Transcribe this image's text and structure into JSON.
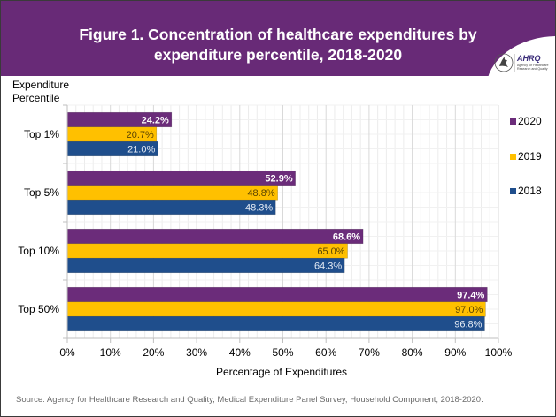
{
  "header": {
    "title_line1": "Figure 1. Concentration of healthcare expenditures by",
    "title_line2": "expenditure percentile, 2018-2020",
    "logo_text": "AHRQ",
    "logo_subtext_line1": "Agency for Healthcare",
    "logo_subtext_line2": "Research and Quality"
  },
  "source": "Source: Agency for Healthcare Research and Quality, Medical Expenditure Panel Survey, Household Component, 2018-2020.",
  "chart_data": {
    "type": "bar",
    "orientation": "horizontal",
    "title": "Figure 1. Concentration of healthcare expenditures by expenditure percentile, 2018-2020",
    "ylabel_line1": "Expenditure",
    "ylabel_line2": "Percentile",
    "xlabel": "Percentage of Expenditures",
    "categories": [
      "Top 1%",
      "Top 5%",
      "Top 10%",
      "Top 50%"
    ],
    "series": [
      {
        "name": "2020",
        "color": "#6b2c7a",
        "label_color": "#ffffff",
        "label_bold": true,
        "values": [
          24.2,
          52.9,
          68.6,
          97.4
        ],
        "labels": [
          "24.2%",
          "52.9%",
          "68.6%",
          "97.4%"
        ]
      },
      {
        "name": "2019",
        "color": "#ffc000",
        "label_color": "#5a4300",
        "label_bold": false,
        "values": [
          20.7,
          48.8,
          65.0,
          97.0
        ],
        "labels": [
          "20.7%",
          "48.8%",
          "65.0%",
          "97.0%"
        ]
      },
      {
        "name": "2018",
        "color": "#1f4e8c",
        "label_color": "#e6ecf5",
        "label_bold": false,
        "values": [
          21.0,
          48.3,
          64.3,
          96.8
        ],
        "labels": [
          "21.0%",
          "48.3%",
          "64.3%",
          "96.8%"
        ]
      }
    ],
    "legend": {
      "placement": "right",
      "order": [
        "2020",
        "2019",
        "2018"
      ]
    },
    "xlim": [
      0,
      100
    ],
    "xticks": [
      0,
      10,
      20,
      30,
      40,
      50,
      60,
      70,
      80,
      90,
      100
    ],
    "xtick_labels": [
      "0%",
      "10%",
      "20%",
      "30%",
      "40%",
      "50%",
      "60%",
      "70%",
      "80%",
      "90%",
      "100%"
    ],
    "grid": {
      "major_step": 10,
      "minor_step": 2
    }
  }
}
